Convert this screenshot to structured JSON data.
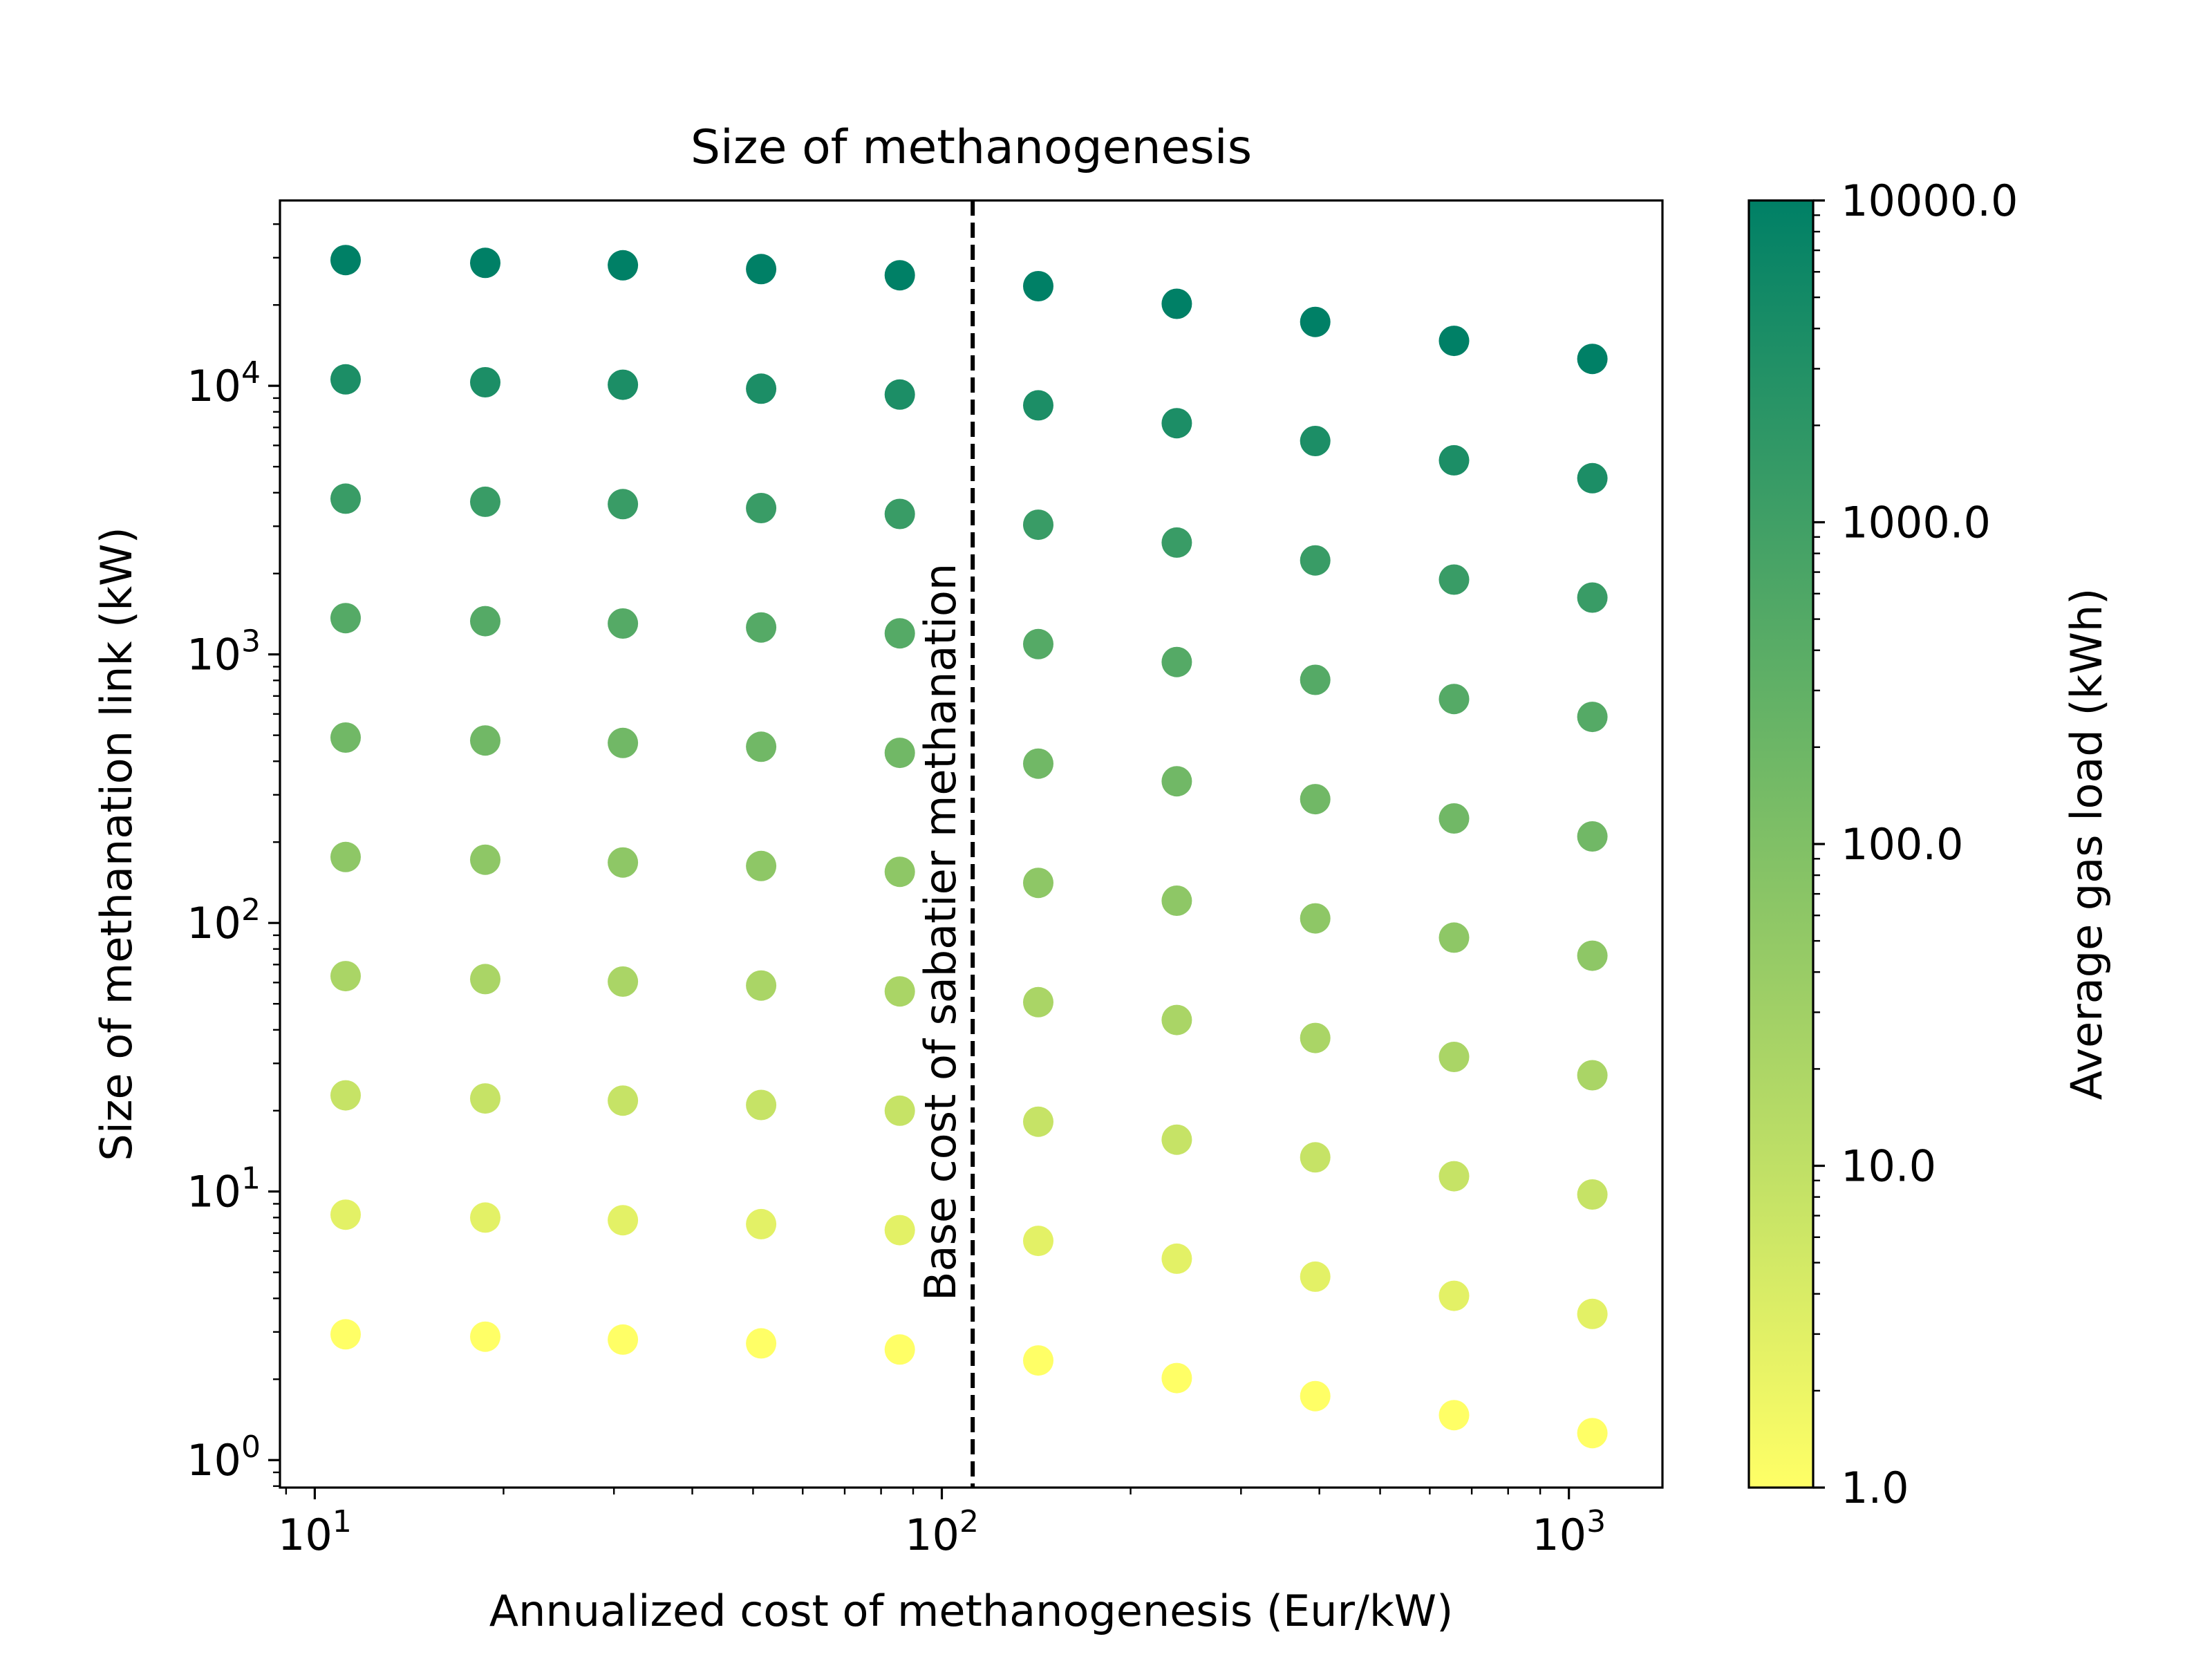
{
  "chart_data": {
    "type": "scatter",
    "title": "Size of methanogenesis",
    "xlabel": "Annualized cost of methanogenesis (Eur/kW)",
    "ylabel": "Size of methanation link (kW)",
    "xscale": "log",
    "yscale": "log",
    "xlim": [
      8.8,
      1410
    ],
    "ylim": [
      0.79,
      49000
    ],
    "x_ticks": [
      {
        "value": 10,
        "base": "10",
        "exp": "1"
      },
      {
        "value": 100,
        "base": "10",
        "exp": "2"
      },
      {
        "value": 1000,
        "base": "10",
        "exp": "3"
      }
    ],
    "y_ticks": [
      {
        "value": 1,
        "base": "10",
        "exp": "0"
      },
      {
        "value": 10,
        "base": "10",
        "exp": "1"
      },
      {
        "value": 100,
        "base": "10",
        "exp": "2"
      },
      {
        "value": 1000,
        "base": "10",
        "exp": "3"
      },
      {
        "value": 10000,
        "base": "10",
        "exp": "4"
      }
    ],
    "grid": false,
    "x": [
      11.2,
      18.7,
      31.0,
      51.5,
      85.7,
      142.5,
      237.0,
      394.0,
      656.0,
      1090.0
    ],
    "gas_loads": [
      1.0,
      2.78,
      7.74,
      21.5,
      59.9,
      166.8,
      464.2,
      1292.0,
      3594.0,
      10000.0
    ],
    "y": [
      [
        2.94,
        2.88,
        2.81,
        2.72,
        2.58,
        2.35,
        2.02,
        1.73,
        1.47,
        1.26
      ],
      [
        8.2,
        8.0,
        7.82,
        7.56,
        7.18,
        6.55,
        5.62,
        4.82,
        4.09,
        3.5
      ],
      [
        22.8,
        22.2,
        21.8,
        21.0,
        20.0,
        18.2,
        15.6,
        13.4,
        11.4,
        9.75
      ],
      [
        63.4,
        61.8,
        60.5,
        58.5,
        55.6,
        50.7,
        43.5,
        37.3,
        31.7,
        27.1
      ],
      [
        176.0,
        172.0,
        168.0,
        163.0,
        155.0,
        141.0,
        121.0,
        104.0,
        88.2,
        75.5
      ],
      [
        490.0,
        478.0,
        468.0,
        453.0,
        430.0,
        392.0,
        337.0,
        289.0,
        245.0,
        210.0
      ],
      [
        1365.0,
        1330.0,
        1303.0,
        1260.0,
        1198.0,
        1092.0,
        937.0,
        804.0,
        682.0,
        585.0
      ],
      [
        3800.0,
        3700.0,
        3626.0,
        3507.0,
        3333.0,
        3039.0,
        2608.0,
        2238.0,
        1898.0,
        1627.0
      ],
      [
        10570.0,
        10310.0,
        10090.0,
        9760.0,
        9280.0,
        8460.0,
        7260.0,
        6230.0,
        5280.0,
        4530.0
      ],
      [
        29400.0,
        28700.0,
        28100.0,
        27200.0,
        25800.0,
        23500.0,
        20200.0,
        17300.0,
        14700.0,
        12600.0
      ]
    ],
    "vline": {
      "x": 112.0,
      "label": "Base cost of sabatier methanation",
      "style": "dashed",
      "color": "#000000"
    },
    "colorbar": {
      "label": "Average gas load (kWh)",
      "scale": "log",
      "range": [
        1.0,
        10000.0
      ],
      "ticks": [
        {
          "value": 1.0,
          "label": "1.0"
        },
        {
          "value": 10.0,
          "label": "10.0"
        },
        {
          "value": 100.0,
          "label": "100.0"
        },
        {
          "value": 1000.0,
          "label": "1000.0"
        },
        {
          "value": 10000.0,
          "label": "10000.0"
        }
      ],
      "colormap": "summer_r",
      "color_low": "#ffff66",
      "color_high": "#008066"
    }
  }
}
